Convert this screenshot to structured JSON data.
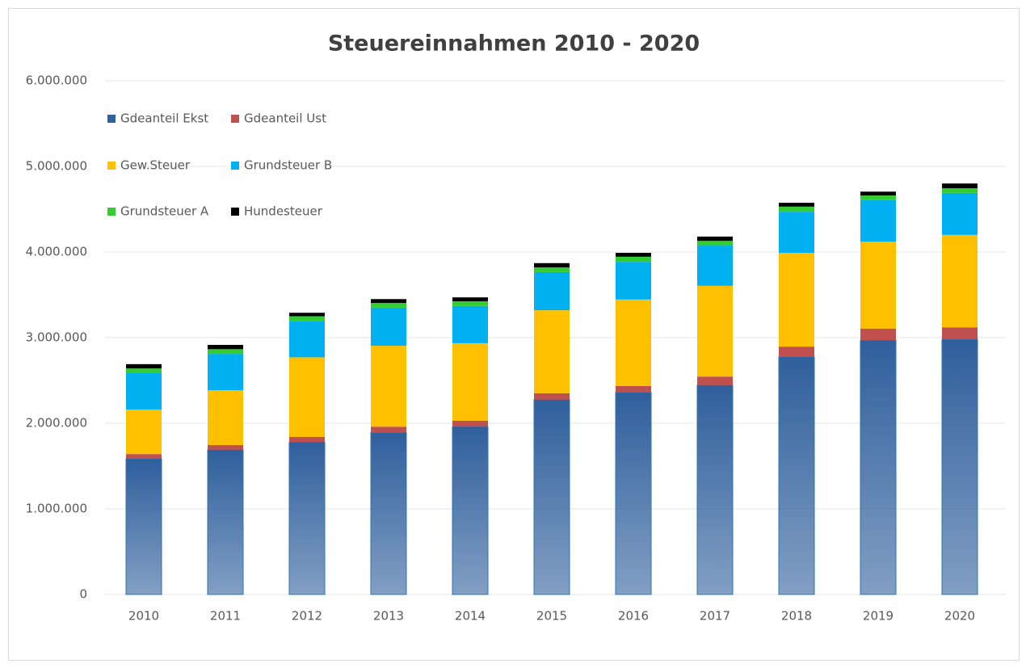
{
  "chart_data": {
    "type": "bar",
    "stacked": true,
    "title": "Steuereinnahmen 2010 - 2020",
    "categories": [
      "2010",
      "2011",
      "2012",
      "2013",
      "2014",
      "2015",
      "2016",
      "2017",
      "2018",
      "2019",
      "2020"
    ],
    "series": [
      {
        "name": "Gdeanteil Ekst",
        "color": "#2f5f9c",
        "values": [
          1585000,
          1690000,
          1780000,
          1890000,
          1960000,
          2275000,
          2360000,
          2445000,
          2775000,
          2970000,
          2980000
        ]
      },
      {
        "name": "Gdeanteil Ust",
        "color": "#c0504d",
        "values": [
          55000,
          55000,
          60000,
          70000,
          70000,
          75000,
          75000,
          100000,
          120000,
          135000,
          140000
        ]
      },
      {
        "name": "Gew.Steuer",
        "color": "#ffc000",
        "values": [
          520000,
          640000,
          930000,
          945000,
          905000,
          970000,
          1010000,
          1060000,
          1095000,
          1015000,
          1080000
        ]
      },
      {
        "name": "Grundsteuer B",
        "color": "#00b0f0",
        "values": [
          425000,
          425000,
          425000,
          445000,
          435000,
          445000,
          440000,
          470000,
          480000,
          485000,
          490000
        ]
      },
      {
        "name": "Grundsteuer A",
        "color": "#33cc33",
        "values": [
          55000,
          55000,
          55000,
          55000,
          55000,
          55000,
          60000,
          55000,
          60000,
          55000,
          55000
        ]
      },
      {
        "name": "Hundesteuer",
        "color": "#000000",
        "values": [
          50000,
          50000,
          40000,
          45000,
          45000,
          50000,
          45000,
          50000,
          45000,
          45000,
          55000
        ]
      }
    ],
    "ylim": [
      0,
      6000000
    ],
    "yticks": [
      0,
      {
        "value": 1000000,
        "label": "1.000.000"
      },
      {
        "value": 2000000,
        "label": "2.000.000"
      },
      {
        "value": 3000000,
        "label": "3.000.000"
      },
      {
        "value": 4000000,
        "label": "4.000.000"
      },
      {
        "value": 5000000,
        "label": "5.000.000"
      },
      {
        "value": 6000000,
        "label": "6.000.000"
      }
    ],
    "grid": true,
    "legend": "top-left"
  }
}
